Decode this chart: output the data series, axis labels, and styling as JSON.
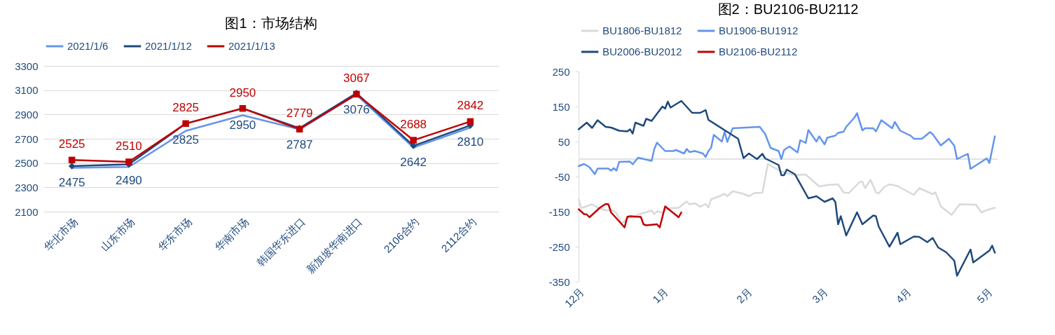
{
  "chart_data": [
    {
      "type": "line",
      "title": "图1：市场结构",
      "categories": [
        "华北市场",
        "山东市场",
        "华东市场",
        "华南市场",
        "韩国华东进口",
        "新加坡华南进口",
        "2106合约",
        "2112合约"
      ],
      "ylim": [
        2100,
        3300
      ],
      "yticks": [
        2100,
        2300,
        2500,
        2700,
        2900,
        3100,
        3300
      ],
      "grid": "y",
      "legend": "top",
      "series": [
        {
          "name": "2021/1/6",
          "color": "#6495ed",
          "values": [
            2460,
            2468,
            2765,
            2893,
            2778,
            3062,
            2627,
            2792
          ]
        },
        {
          "name": "2021/1/12",
          "color": "#1f497d",
          "marker": "diamond",
          "values": [
            2475,
            2490,
            2825,
            2950,
            2787,
            3076,
            2642,
            2810
          ],
          "value_labels": [
            "2475",
            "2490",
            "2825",
            "2950",
            "2787",
            "3076",
            "2642",
            "2810"
          ]
        },
        {
          "name": "2021/1/13",
          "color": "#c00000",
          "marker": "square",
          "values": [
            2525,
            2510,
            2825,
            2950,
            2779,
            3067,
            2688,
            2842
          ],
          "value_labels": [
            "2525",
            "2510",
            "2825",
            "2950",
            "2779",
            "3067",
            "2688",
            "2842"
          ]
        }
      ]
    },
    {
      "type": "line",
      "title": "图2：BU2106-BU2112",
      "xlim": [
        "2020-12-01",
        "2021-05-05"
      ],
      "xticks": [
        {
          "value": "2020-12-01",
          "label": "12月"
        },
        {
          "value": "2021-01-01",
          "label": "1月"
        },
        {
          "value": "2021-02-01",
          "label": "2月"
        },
        {
          "value": "2021-03-01",
          "label": "3月"
        },
        {
          "value": "2021-04-01",
          "label": "4月"
        },
        {
          "value": "2021-05-01",
          "label": "5月"
        }
      ],
      "ylim": [
        -350,
        250
      ],
      "yticks": [
        -350,
        -250,
        -150,
        -50,
        50,
        150,
        250
      ],
      "legend": "top",
      "ref_lines": [
        {
          "axis": "y",
          "value": 0,
          "color": "#d9d9d9"
        }
      ],
      "series": [
        {
          "name": "BU1806-BU1812",
          "color": "#d9d9d9",
          "x": [
            "2020-12-01",
            "2020-12-02",
            "2020-12-06",
            "2020-12-08",
            "2020-12-11",
            "2020-12-14",
            "2020-12-15",
            "2020-12-17",
            "2020-12-19",
            "2020-12-22",
            "2020-12-23",
            "2020-12-28",
            "2020-12-29",
            "2020-12-30",
            "2021-01-01",
            "2021-01-02",
            "2021-01-04",
            "2021-01-07",
            "2021-01-10",
            "2021-01-11",
            "2021-01-13",
            "2021-01-15",
            "2021-01-17",
            "2021-01-18",
            "2021-01-19",
            "2021-01-22",
            "2021-01-24",
            "2021-01-25",
            "2021-01-27",
            "2021-01-31",
            "2021-02-02",
            "2021-02-04",
            "2021-02-07",
            "2021-02-09",
            "2021-02-12",
            "2021-02-14",
            "2021-02-19",
            "2021-02-23",
            "2021-02-28",
            "2021-03-03",
            "2021-03-07",
            "2021-03-09",
            "2021-03-11",
            "2021-03-15",
            "2021-03-16",
            "2021-03-17",
            "2021-03-19",
            "2021-03-21",
            "2021-03-22",
            "2021-03-24",
            "2021-03-26",
            "2021-03-29",
            "2021-04-04",
            "2021-04-06",
            "2021-04-11",
            "2021-04-12",
            "2021-04-14",
            "2021-04-18",
            "2021-04-21",
            "2021-04-27",
            "2021-04-29",
            "2021-05-02",
            "2021-05-04"
          ],
          "values": [
            -115,
            -140,
            -129,
            -138,
            -146,
            -147,
            -155,
            -184,
            -169,
            -166,
            -158,
            -147,
            -157,
            -149,
            -153,
            -145,
            -140,
            -139,
            -121,
            -129,
            -126,
            -136,
            -128,
            -138,
            -115,
            -106,
            -99,
            -106,
            -92,
            -99,
            -106,
            -97,
            -96,
            -14,
            -27,
            -36,
            -46,
            -44,
            -78,
            -74,
            -72,
            -95,
            -97,
            -65,
            -65,
            -83,
            -59,
            -95,
            -98,
            -80,
            -72,
            -77,
            -102,
            -83,
            -100,
            -95,
            -135,
            -159,
            -129,
            -130,
            -152,
            -143,
            -139
          ]
        },
        {
          "name": "BU1906-BU1912",
          "color": "#6495ed",
          "x": [
            "2020-12-01",
            "2020-12-03",
            "2020-12-05",
            "2020-12-07",
            "2020-12-08",
            "2020-12-12",
            "2020-12-13",
            "2020-12-14",
            "2020-12-15",
            "2020-12-16",
            "2020-12-20",
            "2020-12-21",
            "2020-12-23",
            "2020-12-28",
            "2020-12-29",
            "2020-12-30",
            "2021-01-02",
            "2021-01-05",
            "2021-01-06",
            "2021-01-09",
            "2021-01-10",
            "2021-01-11",
            "2021-01-13",
            "2021-01-16",
            "2021-01-17",
            "2021-01-18",
            "2021-01-19",
            "2021-01-20",
            "2021-01-23",
            "2021-01-24",
            "2021-01-25",
            "2021-01-27",
            "2021-02-06",
            "2021-02-08",
            "2021-02-10",
            "2021-02-13",
            "2021-02-14",
            "2021-02-15",
            "2021-02-17",
            "2021-02-20",
            "2021-02-21",
            "2021-02-23",
            "2021-02-24",
            "2021-02-27",
            "2021-02-28",
            "2021-03-02",
            "2021-03-03",
            "2021-03-06",
            "2021-03-07",
            "2021-03-09",
            "2021-03-10",
            "2021-03-13",
            "2021-03-14",
            "2021-03-16",
            "2021-03-17",
            "2021-03-20",
            "2021-03-21",
            "2021-03-23",
            "2021-03-27",
            "2021-03-28",
            "2021-03-30",
            "2021-04-03",
            "2021-04-04",
            "2021-04-07",
            "2021-04-10",
            "2021-04-11",
            "2021-04-14",
            "2021-04-17",
            "2021-04-19",
            "2021-04-20",
            "2021-04-24",
            "2021-04-25",
            "2021-05-01",
            "2021-05-02",
            "2021-05-04"
          ],
          "values": [
            -20,
            -14,
            -23,
            -43,
            -27,
            -27,
            -33,
            -26,
            -33,
            -8,
            -7,
            -15,
            4,
            -5,
            29,
            47,
            23,
            23,
            26,
            16,
            29,
            20,
            23,
            16,
            6,
            23,
            32,
            69,
            50,
            78,
            49,
            88,
            92,
            72,
            32,
            23,
            0,
            26,
            36,
            19,
            54,
            46,
            83,
            50,
            65,
            42,
            61,
            67,
            75,
            78,
            92,
            118,
            131,
            82,
            88,
            88,
            79,
            111,
            88,
            106,
            81,
            66,
            58,
            58,
            77,
            71,
            39,
            58,
            38,
            0,
            15,
            -28,
            2,
            -11,
            65
          ]
        },
        {
          "name": "BU2006-BU2012",
          "color": "#1f497d",
          "x": [
            "2020-12-01",
            "2020-12-04",
            "2020-12-06",
            "2020-12-08",
            "2020-12-11",
            "2020-12-13",
            "2020-12-16",
            "2020-12-19",
            "2020-12-20",
            "2020-12-21",
            "2020-12-22",
            "2020-12-25",
            "2020-12-26",
            "2020-12-28",
            "2021-01-01",
            "2021-01-02",
            "2021-01-03",
            "2021-01-04",
            "2021-01-08",
            "2021-01-12",
            "2021-01-15",
            "2021-01-17",
            "2021-01-18",
            "2021-01-29",
            "2021-01-31",
            "2021-02-02",
            "2021-02-05",
            "2021-02-07",
            "2021-02-08",
            "2021-02-13",
            "2021-02-14",
            "2021-02-15",
            "2021-02-16",
            "2021-02-19",
            "2021-02-24",
            "2021-02-27",
            "2021-03-02",
            "2021-03-05",
            "2021-03-06",
            "2021-03-07",
            "2021-03-08",
            "2021-03-10",
            "2021-03-14",
            "2021-03-16",
            "2021-03-20",
            "2021-03-21",
            "2021-03-22",
            "2021-03-26",
            "2021-03-29",
            "2021-03-30",
            "2021-04-04",
            "2021-04-06",
            "2021-04-09",
            "2021-04-11",
            "2021-04-13",
            "2021-04-16",
            "2021-04-19",
            "2021-04-20",
            "2021-04-25",
            "2021-04-26",
            "2021-05-02",
            "2021-05-03",
            "2021-05-04"
          ],
          "values": [
            85,
            104,
            89,
            111,
            92,
            90,
            81,
            79,
            85,
            73,
            104,
            95,
            115,
            109,
            150,
            144,
            164,
            147,
            166,
            132,
            132,
            140,
            112,
            58,
            3,
            16,
            0,
            15,
            2,
            -17,
            -46,
            -46,
            -30,
            -43,
            -112,
            -106,
            -122,
            -112,
            -123,
            -186,
            -163,
            -218,
            -152,
            -186,
            -161,
            -163,
            -192,
            -250,
            -210,
            -243,
            -221,
            -222,
            -237,
            -225,
            -252,
            -266,
            -290,
            -333,
            -258,
            -295,
            -261,
            -247,
            -267
          ]
        },
        {
          "name": "BU2106-BU2112",
          "color": "#c00000",
          "x": [
            "2020-12-01",
            "2020-12-03",
            "2020-12-04",
            "2020-12-05",
            "2020-12-09",
            "2020-12-11",
            "2020-12-12",
            "2020-12-13",
            "2020-12-18",
            "2020-12-19",
            "2020-12-20",
            "2020-12-24",
            "2020-12-25",
            "2020-12-26",
            "2020-12-30",
            "2020-12-31",
            "2021-01-02",
            "2021-01-07",
            "2021-01-08"
          ],
          "values": [
            -143,
            -157,
            -158,
            -166,
            -138,
            -128,
            -129,
            -152,
            -195,
            -165,
            -163,
            -165,
            -186,
            -189,
            -186,
            -195,
            -135,
            -166,
            -152
          ]
        }
      ]
    }
  ]
}
